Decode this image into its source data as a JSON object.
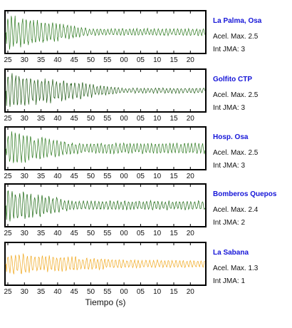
{
  "chart_data": {
    "type": "line",
    "xlabel": "Tiempo (s)",
    "x_ticks": [
      "25",
      "30",
      "35",
      "40",
      "45",
      "50",
      "55",
      "00",
      "05",
      "10",
      "15",
      "20"
    ],
    "panels": [
      {
        "station": "La Palma, Osa",
        "accel_text": "Acel. Max. 2.5",
        "int_text": "Int JMA: 3",
        "color": "#2d7a1f",
        "show_ticks": true,
        "waveform": {
          "onset_tick": "25",
          "peak_relative": 1.0,
          "decay_tick": "50",
          "tail_relative": 0.2
        }
      },
      {
        "station": "Golfito CTP",
        "accel_text": "Acel. Max. 2.5",
        "int_text": "Int JMA: 3",
        "color": "#1e5a14",
        "show_ticks": true,
        "waveform": {
          "onset_tick": "25",
          "peak_relative": 1.0,
          "decay_tick": "00",
          "tail_relative": 0.15
        }
      },
      {
        "station": "Hosp. Osa",
        "accel_text": "Acel. Max. 2.5",
        "int_text": "Int JMA: 3",
        "color": "#2d7a1f",
        "show_ticks": true,
        "waveform": {
          "onset_tick": "25",
          "peak_relative": 1.0,
          "decay_tick": "45",
          "tail_relative": 0.3
        }
      },
      {
        "station": "Bomberos Quepos",
        "accel_text": "Acel. Max. 2.4",
        "int_text": "Int JMA: 2",
        "color": "#1e6a14",
        "show_ticks": true,
        "waveform": {
          "onset_tick": "25",
          "peak_relative": 1.0,
          "decay_tick": "45",
          "tail_relative": 0.25
        }
      },
      {
        "station": "La Sabana",
        "accel_text": "Acel. Max. 1.3",
        "int_text": "Int JMA: 1",
        "color": "#f0a81e",
        "show_ticks": true,
        "waveform": {
          "onset_tick": "25",
          "peak_relative": 0.6,
          "decay_tick": "05",
          "tail_relative": 0.35
        }
      }
    ]
  }
}
